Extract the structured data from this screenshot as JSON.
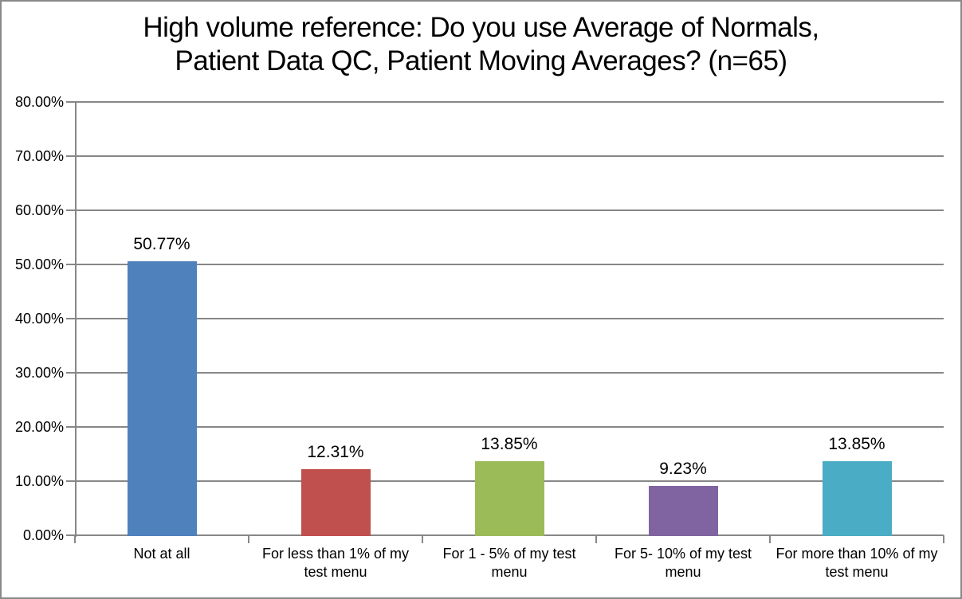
{
  "window": {
    "background_color": "#ffffff",
    "border_color": "#898989"
  },
  "chart_data": {
    "type": "bar",
    "title": "High volume reference: Do you use Average of Normals, Patient Data QC, Patient Moving Averages? (n=65)",
    "title_lines": [
      "High volume reference: Do you use Average of Normals,",
      "Patient Data QC, Patient Moving Averages? (n=65)"
    ],
    "categories": [
      "Not at all",
      "For less than 1% of my test menu",
      "For 1 - 5% of my test menu",
      "For 5- 10% of my test menu",
      "For more than 10% of my test menu"
    ],
    "category_lines": [
      [
        "Not at all"
      ],
      [
        "For less than 1% of my",
        "test menu"
      ],
      [
        "For 1 - 5% of my test",
        "menu"
      ],
      [
        "For 5- 10% of my test",
        "menu"
      ],
      [
        "For more than 10% of my",
        "test menu"
      ]
    ],
    "values": [
      50.77,
      12.31,
      13.85,
      9.23,
      13.85
    ],
    "value_labels": [
      "50.77%",
      "12.31%",
      "13.85%",
      "9.23%",
      "13.85%"
    ],
    "bar_colors": [
      "#4F81BD",
      "#C0504D",
      "#9BBB59",
      "#8064A2",
      "#4BACC6"
    ],
    "ylim": [
      0,
      80
    ],
    "ytick_step": 10,
    "ytick_labels": [
      "0.00%",
      "10.00%",
      "20.00%",
      "30.00%",
      "40.00%",
      "50.00%",
      "60.00%",
      "70.00%",
      "80.00%"
    ],
    "xlabel": "",
    "ylabel": "",
    "grid": "horizontal-only",
    "legend": "none",
    "axis_color": "#878787",
    "data_label_color": "#000000"
  }
}
